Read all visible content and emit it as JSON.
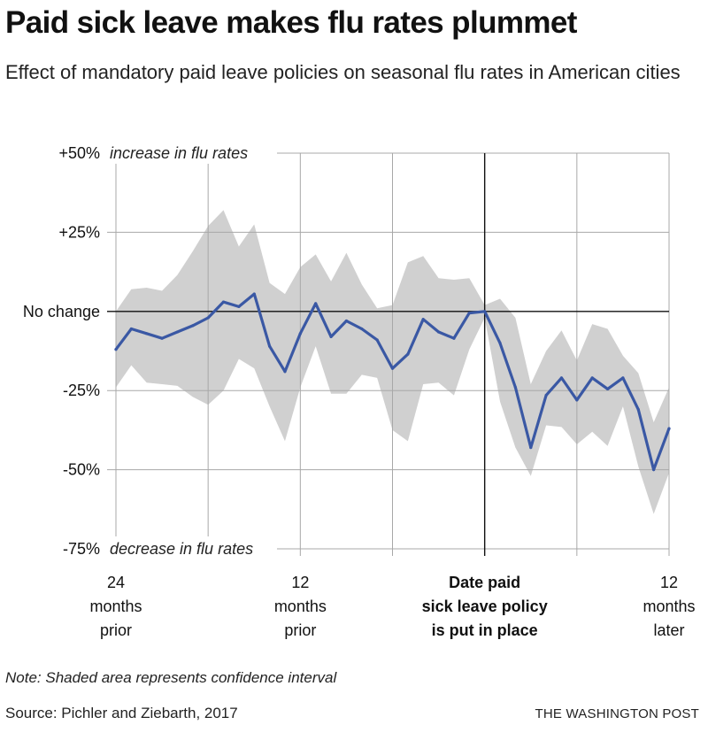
{
  "header": {
    "title": "Paid sick leave makes flu rates plummet",
    "subtitle": "Effect of mandatory paid leave policies on seasonal flu rates in American cities"
  },
  "footer": {
    "note": "Note: Shaded area represents confidence interval",
    "source": "Source: Pichler and Ziebarth, 2017",
    "credit": "THE WASHINGTON POST"
  },
  "colors": {
    "line": "#3a58a4",
    "band": "#d0d0d0",
    "grid": "#a8a8a8",
    "axis": "#111111"
  },
  "chart_data": {
    "type": "line",
    "title": "Paid sick leave makes flu rates plummet",
    "xlabel": "",
    "ylabel": "",
    "xlim": [
      -24,
      12
    ],
    "ylim": [
      -75,
      50
    ],
    "grid": true,
    "y_ticks": [
      {
        "value": 50,
        "label": "+50%",
        "annotation": "increase in flu rates"
      },
      {
        "value": 25,
        "label": "+25%",
        "annotation": ""
      },
      {
        "value": 0,
        "label": "No change",
        "annotation": ""
      },
      {
        "value": -25,
        "label": "-25%",
        "annotation": ""
      },
      {
        "value": -50,
        "label": "-50%",
        "annotation": ""
      },
      {
        "value": -75,
        "label": "-75%",
        "annotation": "decrease in flu rates"
      }
    ],
    "x_ticks": [
      {
        "value": -24,
        "lines": [
          "24",
          "months",
          "prior"
        ],
        "bold": false
      },
      {
        "value": -12,
        "lines": [
          "12",
          "months",
          "prior"
        ],
        "bold": false
      },
      {
        "value": 0,
        "lines": [
          "Date paid",
          "sick leave policy",
          "is put in place"
        ],
        "bold": true
      },
      {
        "value": 12,
        "lines": [
          "12",
          "months",
          "later"
        ],
        "bold": false
      }
    ],
    "x_gridlines": [
      -24,
      -18,
      -12,
      -6,
      6,
      12
    ],
    "event_line_x": 0,
    "series": [
      {
        "values": [
          {
            "x": -24,
            "y": -12
          },
          {
            "x": -23,
            "y": -5.5
          },
          {
            "x": -22,
            "y": -7
          },
          {
            "x": -21,
            "y": -8.5
          },
          {
            "x": -20,
            "y": -6.5
          },
          {
            "x": -19,
            "y": -4.5
          },
          {
            "x": -18,
            "y": -2
          },
          {
            "x": -17,
            "y": 3
          },
          {
            "x": -16,
            "y": 1.5
          },
          {
            "x": -15,
            "y": 5.5
          },
          {
            "x": -14,
            "y": -11
          },
          {
            "x": -13,
            "y": -19
          },
          {
            "x": -12,
            "y": -7
          },
          {
            "x": -11,
            "y": 2.5
          },
          {
            "x": -10,
            "y": -8
          },
          {
            "x": -9,
            "y": -3
          },
          {
            "x": -8,
            "y": -5.5
          },
          {
            "x": -7,
            "y": -9
          },
          {
            "x": -6,
            "y": -18
          },
          {
            "x": -5,
            "y": -13.5
          },
          {
            "x": -4,
            "y": -2.5
          },
          {
            "x": -3,
            "y": -6.5
          },
          {
            "x": -2,
            "y": -8.5
          },
          {
            "x": -1,
            "y": -0.5
          },
          {
            "x": 0,
            "y": 0
          },
          {
            "x": 1,
            "y": -10
          },
          {
            "x": 2,
            "y": -24
          },
          {
            "x": 3,
            "y": -43
          },
          {
            "x": 4,
            "y": -26.5
          },
          {
            "x": 5,
            "y": -21
          },
          {
            "x": 6,
            "y": -28
          },
          {
            "x": 7,
            "y": -21
          },
          {
            "x": 8,
            "y": -24.5
          },
          {
            "x": 9,
            "y": -21
          },
          {
            "x": 10,
            "y": -31
          },
          {
            "x": 11,
            "y": -50
          },
          {
            "x": 12,
            "y": -37
          }
        ]
      }
    ],
    "confidence_interval": {
      "upper": [
        0,
        7,
        7.5,
        6.5,
        11.5,
        19,
        27,
        32,
        20.5,
        27.5,
        9,
        5.5,
        14,
        18,
        9.5,
        18.5,
        8.5,
        1,
        2,
        15.5,
        17.5,
        10.5,
        10,
        10.5,
        2,
        4,
        -2,
        -23,
        -12.5,
        -6,
        -15.5,
        -4,
        -5.5,
        -14,
        -19.5,
        -35,
        -24
      ],
      "lower": [
        -24,
        -17,
        -22.5,
        -23,
        -23.5,
        -27,
        -29.5,
        -25,
        -15,
        -18,
        -30,
        -41,
        -24,
        -11,
        -26,
        -26,
        -20,
        -21,
        -37.5,
        -41,
        -23,
        -22.5,
        -26.5,
        -12,
        -2,
        -28.5,
        -43,
        -52,
        -36,
        -36.5,
        -42,
        -38,
        -42.5,
        -30,
        -49,
        -64,
        -51
      ]
    }
  }
}
